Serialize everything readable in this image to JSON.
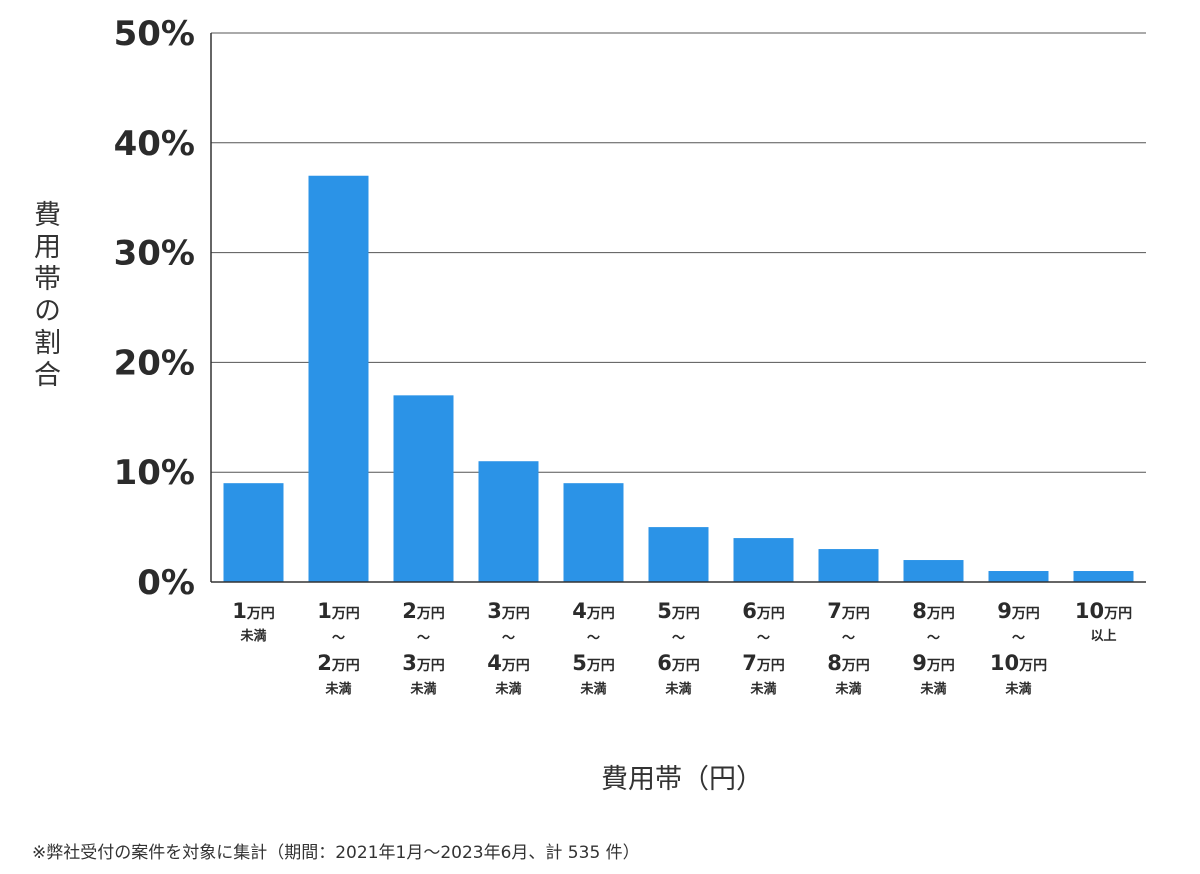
{
  "chart_data": {
    "type": "bar",
    "ylabel": "費用帯の割合",
    "xlabel": "費用帯（円）",
    "note": "※弊社受付の案件を対象に集計（期間：2021年1月～2023年6月、計 535 件）",
    "ylim": [
      0,
      50
    ],
    "yticks": [
      0,
      10,
      20,
      30,
      40,
      50
    ],
    "ytick_labels": [
      "0%",
      "10%",
      "20%",
      "30%",
      "40%",
      "50%"
    ],
    "grid": true,
    "bar_color": "#2b93e7",
    "categories": [
      "1万円未満",
      "1万円〜2万円未満",
      "2万円〜3万円未満",
      "3万円〜4万円未満",
      "4万円〜5万円未満",
      "5万円〜6万円未満",
      "6万円〜7万円未満",
      "7万円〜8万円未満",
      "8万円〜9万円未満",
      "9万円〜10万円未満",
      "10万円以上"
    ],
    "values": [
      9,
      37,
      17,
      11,
      9,
      5,
      4,
      3,
      2,
      1,
      1
    ]
  }
}
